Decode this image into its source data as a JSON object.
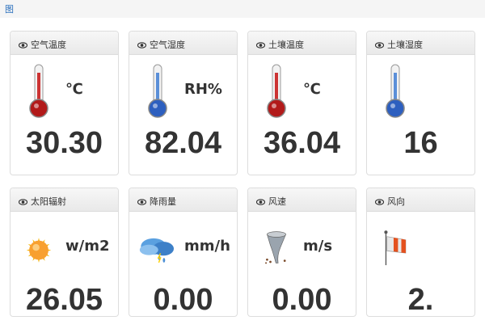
{
  "breadcrumb": "图",
  "cards": [
    {
      "title": "空气温度",
      "unit": "℃",
      "value": "30.30",
      "icon": "thermometer-red"
    },
    {
      "title": "空气湿度",
      "unit": "RH%",
      "value": "82.04",
      "icon": "thermometer-blue"
    },
    {
      "title": "土壤温度",
      "unit": "℃",
      "value": "36.04",
      "icon": "thermometer-red"
    },
    {
      "title": "土壤湿度",
      "unit": "",
      "value": "16",
      "icon": "thermometer-blue"
    },
    {
      "title": "太阳辐射",
      "unit": "w/m2",
      "value": "26.05",
      "icon": "sun"
    },
    {
      "title": "降雨量",
      "unit": "mm/h",
      "value": "0.00",
      "icon": "rain-cloud"
    },
    {
      "title": "风速",
      "unit": "m/s",
      "value": "0.00",
      "icon": "tornado"
    },
    {
      "title": "风向",
      "unit": "",
      "value": "2.",
      "icon": "windsock"
    }
  ]
}
